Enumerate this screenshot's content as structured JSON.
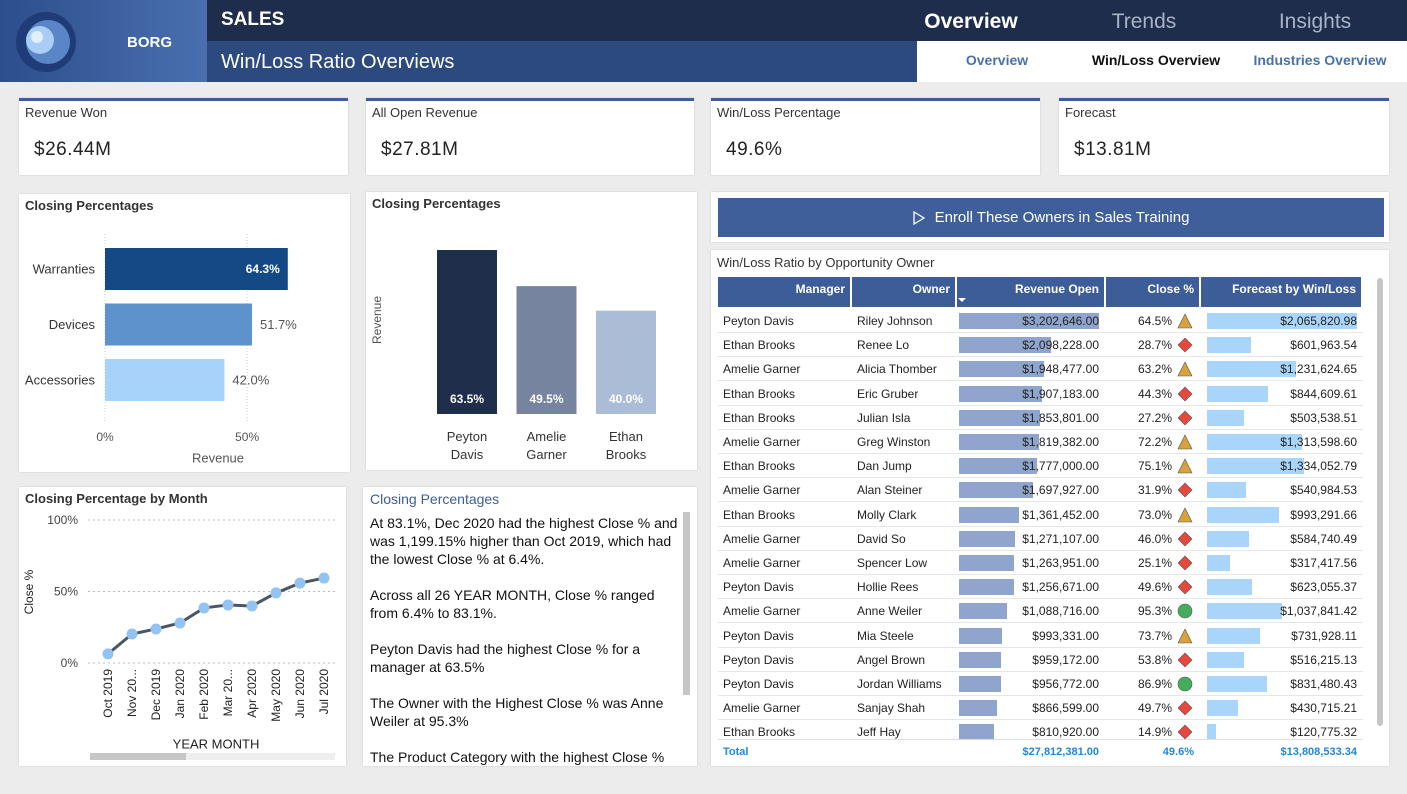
{
  "header": {
    "brand": "BORG",
    "section": "SALES",
    "page_title": "Win/Loss Ratio Overviews",
    "nav": [
      "Overview",
      "Trends",
      "Insights"
    ],
    "subnav": [
      "Overview",
      "Win/Loss Overview",
      "Industries Overview"
    ]
  },
  "kpis": [
    {
      "label": "Revenue Won",
      "value": "$26.44M"
    },
    {
      "label": "All Open Revenue",
      "value": "$27.81M"
    },
    {
      "label": "Win/Loss Percentage",
      "value": "49.6%"
    },
    {
      "label": "Forecast",
      "value": "$13.81M"
    }
  ],
  "bar_chart": {
    "type": "bar",
    "orientation": "horizontal",
    "title": "Closing Percentages",
    "categories": [
      "Warranties",
      "Devices",
      "Accessories"
    ],
    "values": [
      64.3,
      51.7,
      42.0
    ],
    "value_labels": [
      "64.3%",
      "51.7%",
      "42.0%"
    ],
    "colors": [
      "#134a86",
      "#5d93cc",
      "#a7d3fb"
    ],
    "xlim": [
      0,
      70
    ],
    "xticks": [
      {
        "value": 0,
        "label": "0%"
      },
      {
        "value": 50,
        "label": "50%"
      }
    ],
    "x_label": "Revenue"
  },
  "column_chart": {
    "type": "bar",
    "title": "Closing Percentages",
    "y_label": "Revenue",
    "categories": [
      "Peyton Davis",
      "Amelie Garner",
      "Ethan Brooks"
    ],
    "values": [
      63.5,
      49.5,
      40.0
    ],
    "value_labels": [
      "63.5%",
      "49.5%",
      "40.0%"
    ],
    "colors": [
      "#1f2e4b",
      "#76849f",
      "#abbcd6"
    ]
  },
  "line_chart": {
    "type": "line",
    "title": "Closing Percentage by Month",
    "x_label": "YEAR MONTH",
    "y_label": "Close %",
    "categories": [
      "Oct 2019",
      "Nov 20...",
      "Dec 2019",
      "Jan 2020",
      "Feb 2020",
      "Mar 20...",
      "Apr 2020",
      "May 2020",
      "Jun 2020",
      "Jul 2020"
    ],
    "values": [
      6.4,
      20.3,
      23.8,
      28.0,
      38.5,
      40.6,
      39.9,
      49.0,
      55.9,
      59.4
    ],
    "line_color": "#4b5563",
    "marker_color": "#93c3f2",
    "ylim": [
      0,
      100
    ],
    "yticks": [
      {
        "value": 0,
        "label": "0%"
      },
      {
        "value": 50,
        "label": "50%"
      },
      {
        "value": 100,
        "label": "100%"
      }
    ],
    "grid": true
  },
  "narrative": {
    "title": "Closing Percentages",
    "paragraphs": [
      "At 83.1%, Dec 2020 had the highest Close % and was 1,199.15% higher than Oct 2019, which had the lowest Close % at 6.4%.",
      "Across all 26 YEAR MONTH, Close % ranged from 6.4% to 83.1%.",
      "Peyton Davis had the highest Close % for a manager at 63.5%",
      "The Owner with the Highest Close % was Anne Weiler at 95.3%",
      "The Product Category with the highest Close %"
    ]
  },
  "button": {
    "label": "Enroll These Owners in Sales Training"
  },
  "table": {
    "title": "Win/Loss Ratio by Opportunity Owner",
    "columns": [
      "Manager",
      "Owner",
      "Revenue Open",
      "Close %",
      "Forecast by Win/Loss Ratio"
    ],
    "icon_colors": {
      "triangle": "#d9a13b",
      "diamond": "#e8473d",
      "circle": "#43ad5c"
    },
    "rows": [
      {
        "manager": "Peyton Davis",
        "owner": "Riley Johnson",
        "revenue_open": 3202646.0,
        "revenue_open_label": "$3,202,646.00",
        "close": 64.5,
        "close_label": "64.5%",
        "icon": "triangle",
        "forecast": 2065820.98,
        "forecast_label": "$2,065,820.98"
      },
      {
        "manager": "Ethan Brooks",
        "owner": "Renee Lo",
        "revenue_open": 2098228.0,
        "revenue_open_label": "$2,098,228.00",
        "close": 28.7,
        "close_label": "28.7%",
        "icon": "diamond",
        "forecast": 601963.54,
        "forecast_label": "$601,963.54"
      },
      {
        "manager": "Amelie Garner",
        "owner": "Alicia Thomber",
        "revenue_open": 1948477.0,
        "revenue_open_label": "$1,948,477.00",
        "close": 63.2,
        "close_label": "63.2%",
        "icon": "triangle",
        "forecast": 1231624.65,
        "forecast_label": "$1,231,624.65"
      },
      {
        "manager": "Ethan Brooks",
        "owner": "Eric Gruber",
        "revenue_open": 1907183.0,
        "revenue_open_label": "$1,907,183.00",
        "close": 44.3,
        "close_label": "44.3%",
        "icon": "diamond",
        "forecast": 844609.61,
        "forecast_label": "$844,609.61"
      },
      {
        "manager": "Ethan Brooks",
        "owner": "Julian Isla",
        "revenue_open": 1853801.0,
        "revenue_open_label": "$1,853,801.00",
        "close": 27.2,
        "close_label": "27.2%",
        "icon": "diamond",
        "forecast": 503538.51,
        "forecast_label": "$503,538.51"
      },
      {
        "manager": "Amelie Garner",
        "owner": "Greg Winston",
        "revenue_open": 1819382.0,
        "revenue_open_label": "$1,819,382.00",
        "close": 72.2,
        "close_label": "72.2%",
        "icon": "triangle",
        "forecast": 1313598.6,
        "forecast_label": "$1,313,598.60"
      },
      {
        "manager": "Ethan Brooks",
        "owner": "Dan Jump",
        "revenue_open": 1777000.0,
        "revenue_open_label": "$1,777,000.00",
        "close": 75.1,
        "close_label": "75.1%",
        "icon": "triangle",
        "forecast": 1334052.79,
        "forecast_label": "$1,334,052.79"
      },
      {
        "manager": "Amelie Garner",
        "owner": "Alan Steiner",
        "revenue_open": 1697927.0,
        "revenue_open_label": "$1,697,927.00",
        "close": 31.9,
        "close_label": "31.9%",
        "icon": "diamond",
        "forecast": 540984.53,
        "forecast_label": "$540,984.53"
      },
      {
        "manager": "Ethan Brooks",
        "owner": "Molly Clark",
        "revenue_open": 1361452.0,
        "revenue_open_label": "$1,361,452.00",
        "close": 73.0,
        "close_label": "73.0%",
        "icon": "triangle",
        "forecast": 993291.66,
        "forecast_label": "$993,291.66"
      },
      {
        "manager": "Amelie Garner",
        "owner": "David So",
        "revenue_open": 1271107.0,
        "revenue_open_label": "$1,271,107.00",
        "close": 46.0,
        "close_label": "46.0%",
        "icon": "diamond",
        "forecast": 584740.49,
        "forecast_label": "$584,740.49"
      },
      {
        "manager": "Amelie Garner",
        "owner": "Spencer Low",
        "revenue_open": 1263951.0,
        "revenue_open_label": "$1,263,951.00",
        "close": 25.1,
        "close_label": "25.1%",
        "icon": "diamond",
        "forecast": 317417.56,
        "forecast_label": "$317,417.56"
      },
      {
        "manager": "Peyton Davis",
        "owner": "Hollie Rees",
        "revenue_open": 1256671.0,
        "revenue_open_label": "$1,256,671.00",
        "close": 49.6,
        "close_label": "49.6%",
        "icon": "diamond",
        "forecast": 623055.37,
        "forecast_label": "$623,055.37"
      },
      {
        "manager": "Amelie Garner",
        "owner": "Anne Weiler",
        "revenue_open": 1088716.0,
        "revenue_open_label": "$1,088,716.00",
        "close": 95.3,
        "close_label": "95.3%",
        "icon": "circle",
        "forecast": 1037841.42,
        "forecast_label": "$1,037,841.42"
      },
      {
        "manager": "Peyton Davis",
        "owner": "Mia Steele",
        "revenue_open": 993331.0,
        "revenue_open_label": "$993,331.00",
        "close": 73.7,
        "close_label": "73.7%",
        "icon": "triangle",
        "forecast": 731928.11,
        "forecast_label": "$731,928.11"
      },
      {
        "manager": "Peyton Davis",
        "owner": "Angel Brown",
        "revenue_open": 959172.0,
        "revenue_open_label": "$959,172.00",
        "close": 53.8,
        "close_label": "53.8%",
        "icon": "diamond",
        "forecast": 516215.13,
        "forecast_label": "$516,215.13"
      },
      {
        "manager": "Peyton Davis",
        "owner": "Jordan Williams",
        "revenue_open": 956772.0,
        "revenue_open_label": "$956,772.00",
        "close": 86.9,
        "close_label": "86.9%",
        "icon": "circle",
        "forecast": 831480.43,
        "forecast_label": "$831,480.43"
      },
      {
        "manager": "Amelie Garner",
        "owner": "Sanjay Shah",
        "revenue_open": 866599.0,
        "revenue_open_label": "$866,599.00",
        "close": 49.7,
        "close_label": "49.7%",
        "icon": "diamond",
        "forecast": 430715.21,
        "forecast_label": "$430,715.21"
      },
      {
        "manager": "Ethan Brooks",
        "owner": "Jeff Hay",
        "revenue_open": 810920.0,
        "revenue_open_label": "$810,920.00",
        "close": 14.9,
        "close_label": "14.9%",
        "icon": "diamond",
        "forecast": 120775.32,
        "forecast_label": "$120,775.32"
      }
    ],
    "total": {
      "label": "Total",
      "revenue_open": "$27,812,381.00",
      "close": "49.6%",
      "forecast": "$13,808,533.34"
    }
  }
}
